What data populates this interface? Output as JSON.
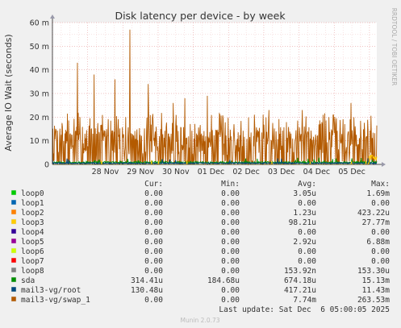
{
  "chart_data": {
    "type": "line",
    "title": "Disk latency per device - by week",
    "ylabel": "Average IO Wait (seconds)",
    "xlabel": "",
    "ylim": [
      0,
      0.06
    ],
    "y_tick_labels": [
      "0",
      "10 m",
      "20 m",
      "30 m",
      "40 m",
      "50 m",
      "60 m"
    ],
    "y_ticks": [
      0,
      0.01,
      0.02,
      0.03,
      0.04,
      0.05,
      0.06
    ],
    "x_range": [
      "2025-11-27",
      "2025-12-06 05:00"
    ],
    "x_ticks": [
      "2025-11-28",
      "2025-11-29",
      "2025-11-30",
      "2025-12-01",
      "2025-12-02",
      "2025-12-03",
      "2025-12-04",
      "2025-12-05"
    ],
    "x_tick_labels": [
      "28 Nov",
      "29 Nov",
      "30 Nov",
      "01 Dec",
      "02 Dec",
      "03 Dec",
      "04 Dec",
      "05 Dec"
    ],
    "grid": true,
    "side_label": "RRDTOOL / TOBI OETIKER",
    "legend_header": {
      "cur": "Cur:",
      "min": "Min:",
      "avg": "Avg:",
      "max": "Max:"
    },
    "series": [
      {
        "name": "loop0",
        "color": "#00cc00",
        "cur": "0.00",
        "min": "0.00",
        "avg": "3.05u",
        "max": "1.69m"
      },
      {
        "name": "loop1",
        "color": "#0066b3",
        "cur": "0.00",
        "min": "0.00",
        "avg": "0.00",
        "max": "0.00"
      },
      {
        "name": "loop2",
        "color": "#ff8000",
        "cur": "0.00",
        "min": "0.00",
        "avg": "1.23u",
        "max": "423.22u"
      },
      {
        "name": "loop3",
        "color": "#ffcc00",
        "cur": "0.00",
        "min": "0.00",
        "avg": "98.21u",
        "max": "27.77m"
      },
      {
        "name": "loop4",
        "color": "#330099",
        "cur": "0.00",
        "min": "0.00",
        "avg": "0.00",
        "max": "0.00"
      },
      {
        "name": "loop5",
        "color": "#990099",
        "cur": "0.00",
        "min": "0.00",
        "avg": "2.92u",
        "max": "6.88m"
      },
      {
        "name": "loop6",
        "color": "#ccff00",
        "cur": "0.00",
        "min": "0.00",
        "avg": "0.00",
        "max": "0.00"
      },
      {
        "name": "loop7",
        "color": "#ff0000",
        "cur": "0.00",
        "min": "0.00",
        "avg": "0.00",
        "max": "0.00"
      },
      {
        "name": "loop8",
        "color": "#808080",
        "cur": "0.00",
        "min": "0.00",
        "avg": "153.92n",
        "max": "153.30u"
      },
      {
        "name": "sda",
        "color": "#008f00",
        "cur": "314.41u",
        "min": "184.68u",
        "avg": "674.18u",
        "max": "15.13m"
      },
      {
        "name": "mail3-vg/root",
        "color": "#00487d",
        "cur": "130.48u",
        "min": "0.00",
        "avg": "417.21u",
        "max": "11.43m"
      },
      {
        "name": "mail3-vg/swap_1",
        "color": "#b35a00",
        "cur": "0.00",
        "min": "0.00",
        "avg": "7.74m",
        "max": "263.53m"
      }
    ],
    "last_update": "Last update: Sat Dec  6 05:00:05 2025",
    "footer": "Munin 2.0.73"
  }
}
